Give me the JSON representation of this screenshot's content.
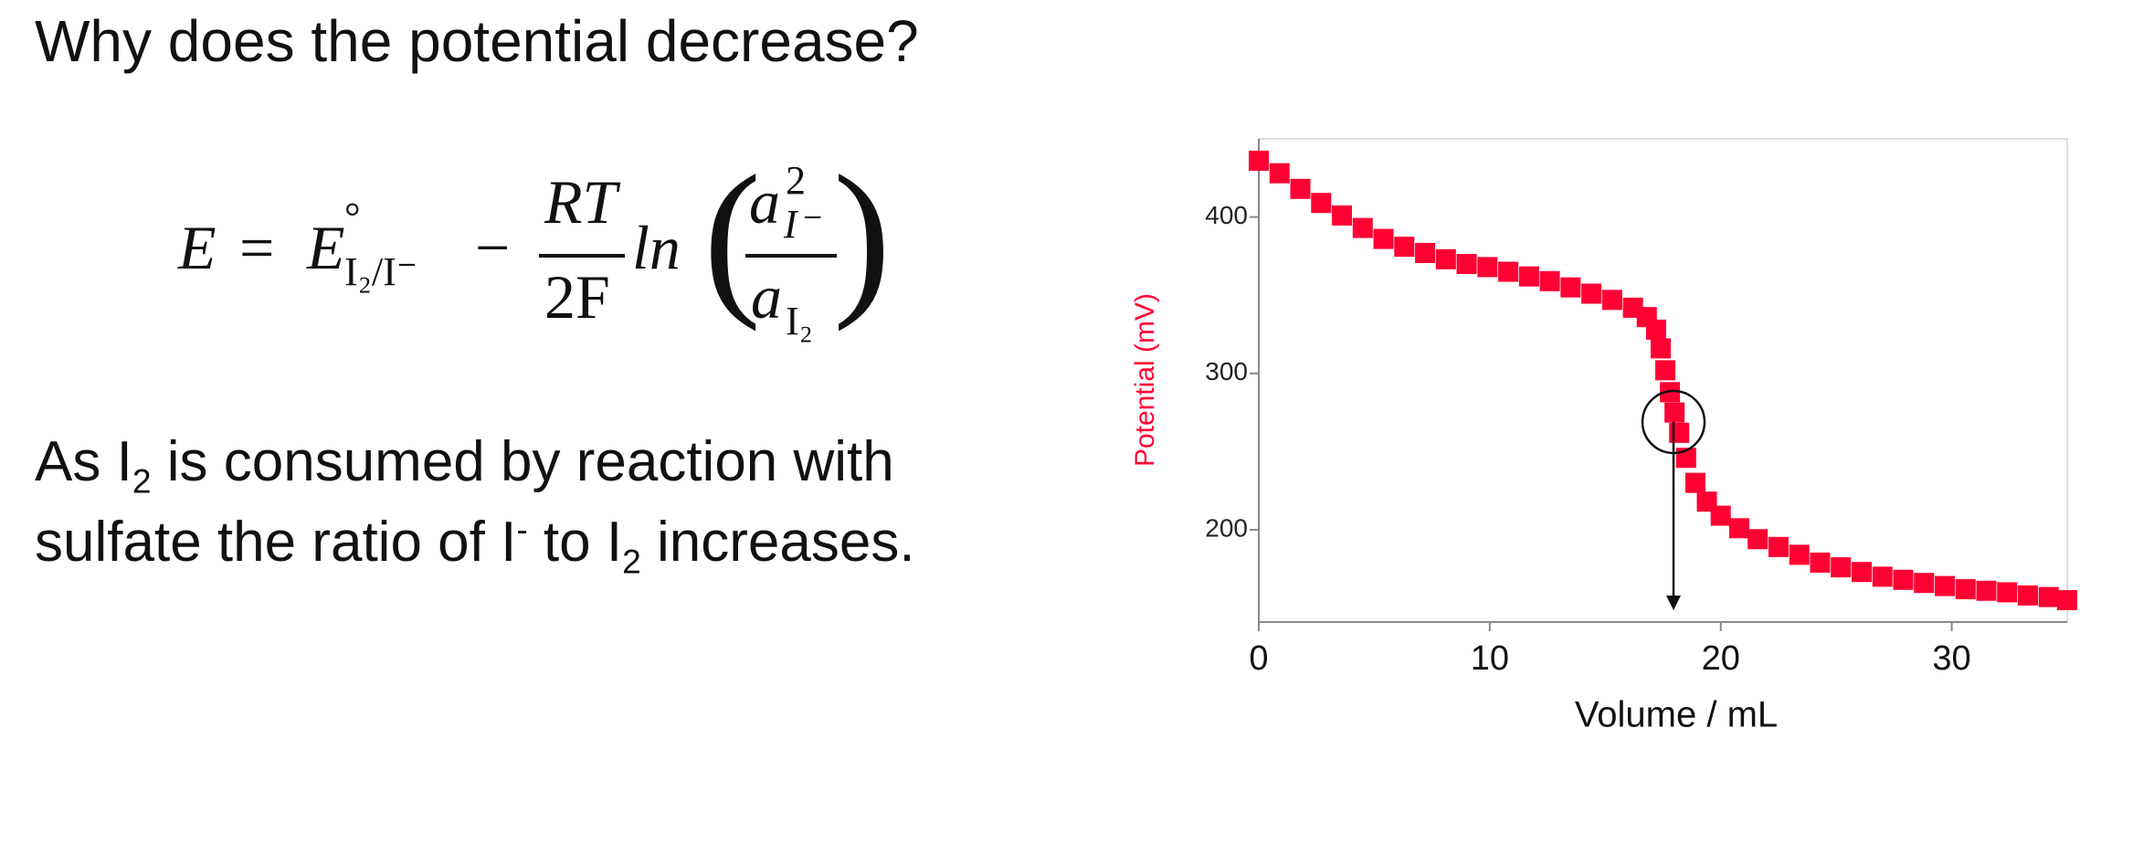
{
  "title": "Why does the potential decrease?",
  "equation": {
    "lhs": "E",
    "eq": "=",
    "e0": "E",
    "degree": "°",
    "e0_sub": "I₂/I⁻",
    "minus": "−",
    "num": "RT",
    "den": "2F",
    "ln": "ln",
    "lparen": "(",
    "rparen": ")",
    "a_top": "a",
    "a_top_sup": "2",
    "a_top_sub": "I⁻",
    "a_bot": "a",
    "a_bot_sub": "I₂"
  },
  "paragraph": {
    "line1": [
      "As I",
      "2",
      " is consumed by reaction with"
    ],
    "line2": [
      "sulfate the ratio of I",
      "-",
      " to I",
      "2",
      " increases."
    ]
  },
  "chart_data": {
    "type": "scatter",
    "x_label": "Volume / mL",
    "y_label": "Potential (mV)",
    "y_label_color": "#ff0033",
    "xlim": [
      0,
      35
    ],
    "xticks": [
      0,
      10,
      20,
      30
    ],
    "ylim": [
      141,
      450
    ],
    "yticks": [
      200,
      300,
      400
    ],
    "grid": false,
    "series": [
      {
        "name": "Potential",
        "color": "#ff0033",
        "x": [
          0,
          0.9,
          1.8,
          2.7,
          3.6,
          4.5,
          5.4,
          6.3,
          7.2,
          8.1,
          9,
          9.9,
          10.8,
          11.7,
          12.6,
          13.5,
          14.4,
          15.3,
          16.2,
          16.8,
          17.2,
          17.4,
          17.6,
          17.8,
          18,
          18.2,
          18.5,
          18.9,
          19.4,
          20,
          20.8,
          21.6,
          22.5,
          23.4,
          24.3,
          25.2,
          26.1,
          27,
          27.9,
          28.8,
          29.7,
          30.6,
          31.5,
          32.4,
          33.3,
          34.2,
          35
        ],
        "values": [
          436,
          428,
          418,
          409,
          401,
          393,
          386,
          381,
          377,
          373,
          370,
          368,
          365,
          362,
          359,
          355,
          351,
          347,
          342,
          336,
          328,
          316,
          302,
          288,
          275,
          262,
          246,
          230,
          218,
          209,
          201,
          194,
          189,
          184,
          179,
          176,
          173,
          170,
          168,
          166,
          164,
          162,
          161,
          160,
          158,
          157,
          155
        ]
      }
    ]
  }
}
